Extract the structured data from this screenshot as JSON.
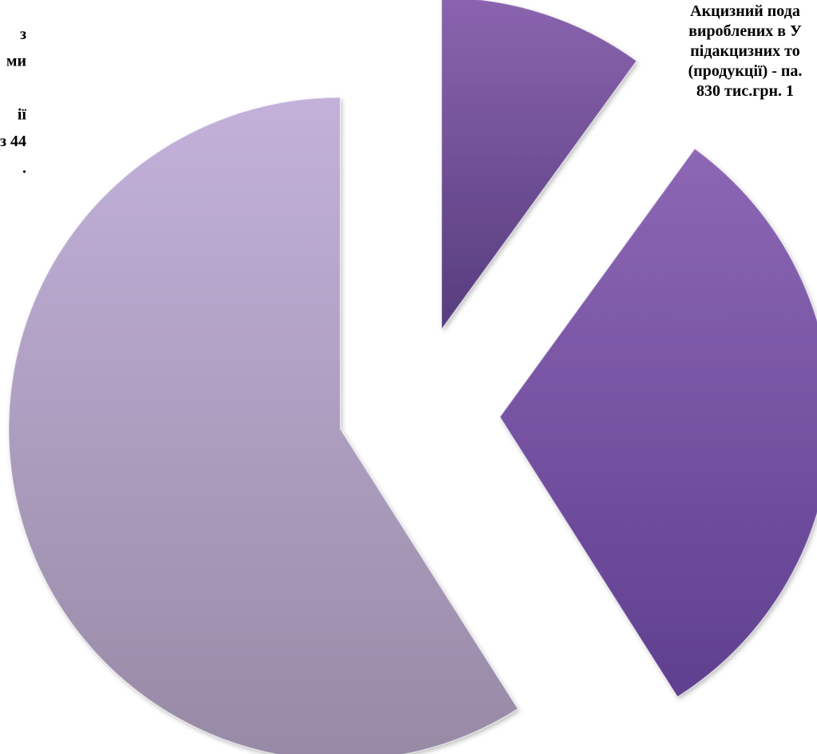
{
  "chart_data": {
    "type": "pie",
    "title": "",
    "exploded": true,
    "slices": [
      {
        "value": 10,
        "color_light": "#8a64ae",
        "color_dark": "#563c7e",
        "label_lines": [
          "Акцизний пода",
          "вироблених в У",
          "підакцизних то",
          "(продукції) - па.",
          "830 тис.грн.  1"
        ]
      },
      {
        "value": 31,
        "color_light": "#8c67b5",
        "color_dark": "#5f3f8f",
        "label_lines": []
      },
      {
        "value": 59,
        "color_light": "#c3b1da",
        "color_dark": "#978aa5",
        "label_lines": [
          "з",
          "ми",
          "",
          "ії",
          "з 44",
          "."
        ]
      }
    ],
    "legend": "none"
  }
}
